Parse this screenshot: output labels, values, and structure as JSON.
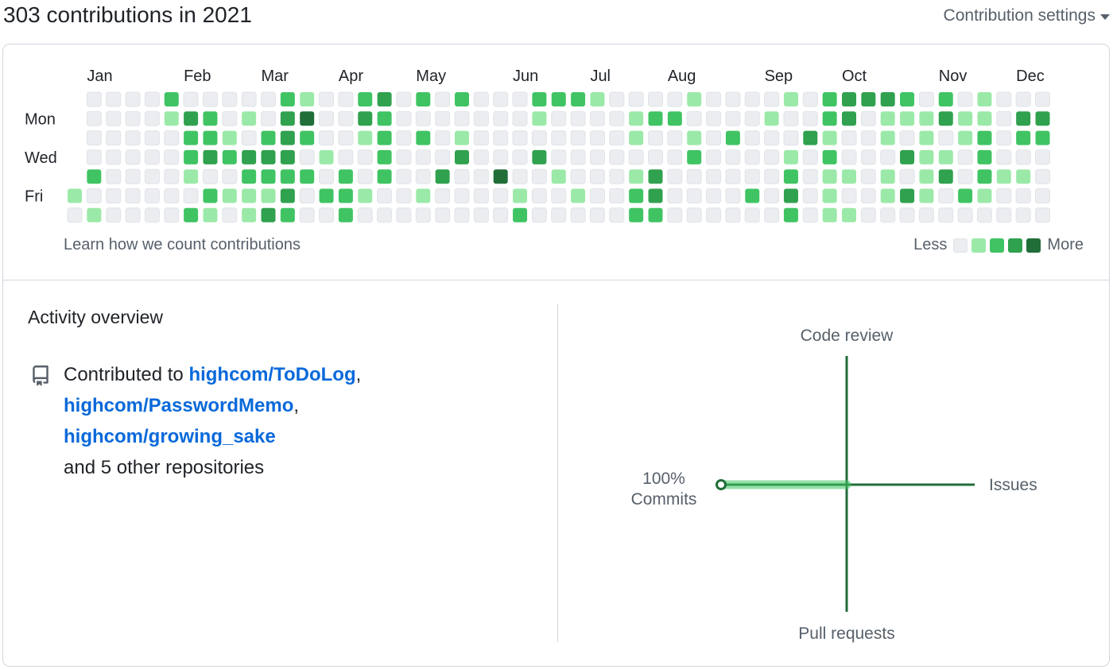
{
  "header": {
    "title": "303 contributions in 2021",
    "settings_label": "Contribution settings",
    "settings_icon": "caret-down-icon"
  },
  "calendar": {
    "months": [
      "Jan",
      "Feb",
      "Mar",
      "Apr",
      "May",
      "Jun",
      "Jul",
      "Aug",
      "Sep",
      "Oct",
      "Nov",
      "Dec"
    ],
    "month_week_index": [
      1,
      6,
      10,
      14,
      18,
      23,
      27,
      31,
      36,
      40,
      45,
      49
    ],
    "day_labels": [
      "Mon",
      "Wed",
      "Fri"
    ],
    "day_label_rows": [
      1,
      3,
      5
    ],
    "level_colors": [
      "#ebedf0",
      "#9be9a8",
      "#40c463",
      "#30a14e",
      "#216e39"
    ],
    "first_week_start_row": 5,
    "levels": [
      [
        1,
        0
      ],
      [
        0,
        0,
        0,
        0,
        2,
        0,
        1
      ],
      [
        0,
        0,
        0,
        0,
        0,
        0,
        0
      ],
      [
        0,
        0,
        0,
        0,
        0,
        0,
        0
      ],
      [
        0,
        0,
        0,
        0,
        0,
        0,
        0
      ],
      [
        2,
        1,
        0,
        0,
        0,
        0,
        0
      ],
      [
        0,
        3,
        2,
        2,
        1,
        0,
        2
      ],
      [
        0,
        2,
        2,
        3,
        0,
        2,
        1
      ],
      [
        0,
        0,
        1,
        2,
        0,
        1,
        0
      ],
      [
        0,
        1,
        0,
        3,
        2,
        1,
        1
      ],
      [
        0,
        0,
        2,
        3,
        2,
        1,
        3
      ],
      [
        2,
        3,
        3,
        3,
        2,
        3,
        2
      ],
      [
        1,
        4,
        2,
        0,
        2,
        0,
        0
      ],
      [
        0,
        0,
        0,
        1,
        0,
        2,
        0
      ],
      [
        0,
        0,
        0,
        0,
        2,
        2,
        2
      ],
      [
        2,
        3,
        1,
        0,
        0,
        1,
        0
      ],
      [
        3,
        2,
        2,
        2,
        2,
        0,
        0
      ],
      [
        0,
        0,
        0,
        0,
        0,
        0,
        0
      ],
      [
        2,
        0,
        2,
        0,
        0,
        1,
        0
      ],
      [
        0,
        0,
        0,
        0,
        3,
        0,
        0
      ],
      [
        2,
        0,
        1,
        3,
        0,
        0,
        0
      ],
      [
        0,
        0,
        0,
        0,
        0,
        0,
        0
      ],
      [
        0,
        0,
        0,
        0,
        4,
        0,
        0
      ],
      [
        0,
        0,
        0,
        0,
        0,
        1,
        2
      ],
      [
        2,
        1,
        0,
        3,
        0,
        0,
        0
      ],
      [
        2,
        0,
        0,
        0,
        1,
        0,
        0
      ],
      [
        2,
        0,
        0,
        0,
        0,
        1,
        0
      ],
      [
        1,
        0,
        0,
        0,
        0,
        0,
        0
      ],
      [
        0,
        0,
        0,
        0,
        0,
        0,
        0
      ],
      [
        0,
        1,
        1,
        0,
        1,
        2,
        2
      ],
      [
        0,
        2,
        0,
        0,
        3,
        3,
        2
      ],
      [
        0,
        2,
        0,
        0,
        0,
        0,
        0
      ],
      [
        1,
        0,
        1,
        2,
        0,
        0,
        0
      ],
      [
        0,
        0,
        0,
        0,
        0,
        0,
        0
      ],
      [
        0,
        0,
        2,
        0,
        0,
        0,
        0
      ],
      [
        0,
        0,
        0,
        0,
        0,
        2,
        0
      ],
      [
        0,
        1,
        0,
        0,
        0,
        0,
        0
      ],
      [
        1,
        0,
        0,
        1,
        2,
        3,
        2
      ],
      [
        0,
        0,
        3,
        0,
        0,
        0,
        0
      ],
      [
        2,
        2,
        1,
        2,
        1,
        1,
        1
      ],
      [
        3,
        3,
        0,
        0,
        1,
        0,
        1
      ],
      [
        3,
        0,
        0,
        0,
        0,
        0,
        0
      ],
      [
        3,
        1,
        1,
        0,
        1,
        1,
        0
      ],
      [
        2,
        1,
        0,
        3,
        0,
        3,
        0
      ],
      [
        0,
        1,
        1,
        1,
        1,
        1,
        0
      ],
      [
        2,
        3,
        0,
        1,
        3,
        0,
        0
      ],
      [
        0,
        1,
        1,
        0,
        0,
        2,
        0
      ],
      [
        1,
        1,
        2,
        2,
        2,
        1,
        0
      ],
      [
        0,
        0,
        0,
        0,
        1,
        0,
        0
      ],
      [
        0,
        3,
        2,
        0,
        1,
        0,
        0
      ],
      [
        0,
        3,
        2,
        0,
        0,
        0,
        0
      ]
    ]
  },
  "footer": {
    "learn_link": "Learn how we count contributions",
    "legend_less": "Less",
    "legend_more": "More"
  },
  "activity": {
    "title": "Activity overview",
    "repo_icon": "repo-icon",
    "prefix": "Contributed to",
    "repos": [
      "highcom/ToDoLog",
      "highcom/PasswordMemo",
      "highcom/growing_sake"
    ],
    "others": "and 5 other repositories",
    "radar": {
      "top": "Code review",
      "bottom": "Pull requests",
      "right": "Issues",
      "left_percent": "100%",
      "left_label": "Commits",
      "axis_color": "#216e39",
      "fill_color": "#40c463",
      "values": {
        "commits": 100,
        "code_review": 0,
        "issues": 0,
        "pull_requests": 0
      }
    }
  }
}
